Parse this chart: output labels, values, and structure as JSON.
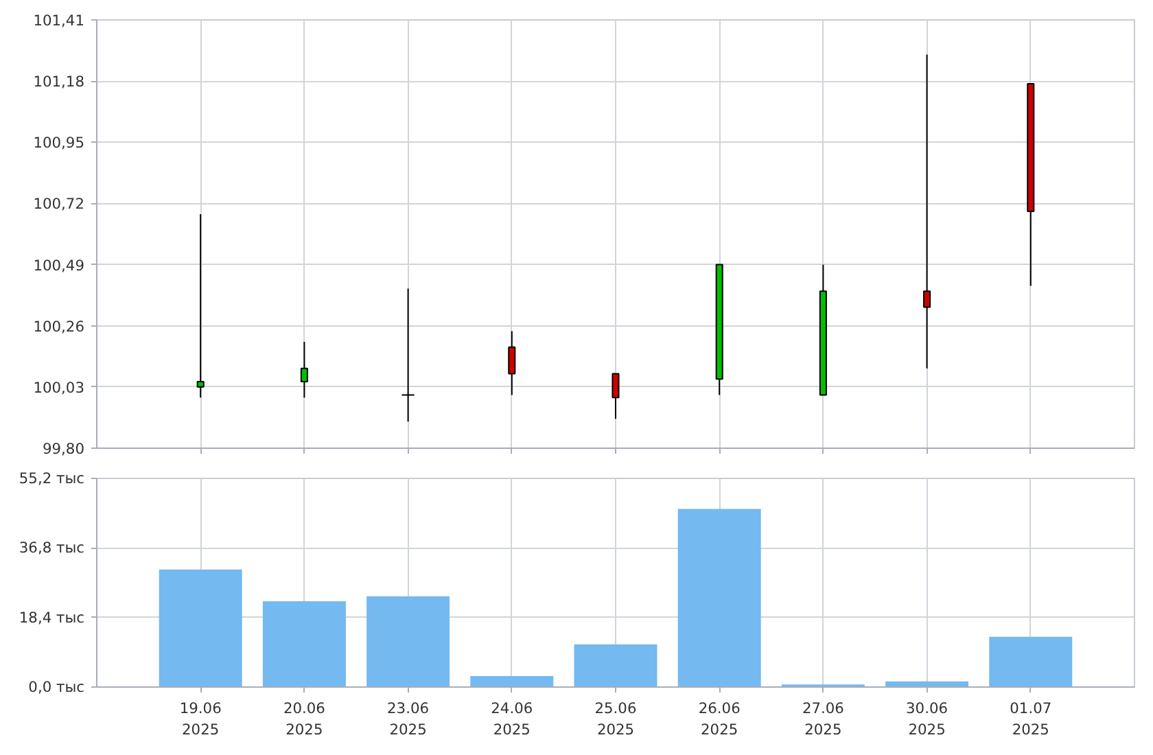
{
  "chart_data": [
    {
      "type": "candlestick",
      "categories": [
        null,
        null,
        null,
        null,
        null,
        null,
        null,
        null,
        null
      ],
      "ohlc": [
        [
          100.03,
          100.68,
          99.99,
          100.05
        ],
        [
          100.05,
          100.2,
          99.99,
          100.1
        ],
        [
          100.0,
          100.4,
          99.9,
          100.0
        ],
        [
          100.18,
          100.24,
          100.0,
          100.08
        ],
        [
          100.08,
          100.08,
          99.91,
          99.99
        ],
        [
          100.06,
          100.49,
          100.0,
          100.49
        ],
        [
          100.0,
          100.49,
          100.0,
          100.39
        ],
        [
          100.39,
          101.28,
          100.1,
          100.33
        ],
        [
          101.17,
          101.17,
          100.41,
          100.69
        ]
      ],
      "colors": [
        "#00c000",
        "#00c000",
        "#000000",
        "#d00000",
        "#d00000",
        "#00c000",
        "#00c000",
        "#d00000",
        "#d00000"
      ],
      "ylim": [
        99.8,
        101.41
      ],
      "yticks": [
        {
          "value": 99.8,
          "label": "99,80"
        },
        {
          "value": 100.03,
          "label": "100,03"
        },
        {
          "value": 100.26,
          "label": "100,26"
        },
        {
          "value": 100.49,
          "label": "100,49"
        },
        {
          "value": 100.72,
          "label": "100,72"
        },
        {
          "value": 100.95,
          "label": "100,95"
        },
        {
          "value": 101.18,
          "label": "101,18"
        },
        {
          "value": 101.41,
          "label": "101,41"
        }
      ],
      "grid": true,
      "tick_labels": "y"
    },
    {
      "type": "bar",
      "categories": [
        "19.06\n2025",
        "20.06\n2025",
        "23.06\n2025",
        "24.06\n2025",
        "25.06\n2025",
        "26.06\n2025",
        "27.06\n2025",
        "30.06\n2025",
        "01.07\n2025"
      ],
      "values": [
        31.1,
        22.7,
        24.0,
        2.9,
        11.3,
        47.1,
        0.7,
        1.5,
        13.3
      ],
      "color": "#74b9f0",
      "ylim": [
        0,
        55.2
      ],
      "yticks": [
        {
          "value": 0,
          "label": "0,0 тыс"
        },
        {
          "value": 18.4,
          "label": "18,4 тыс"
        },
        {
          "value": 36.8,
          "label": "36,8 тыс"
        },
        {
          "value": 55.2,
          "label": "55,2 тыс"
        }
      ],
      "grid": true
    }
  ]
}
